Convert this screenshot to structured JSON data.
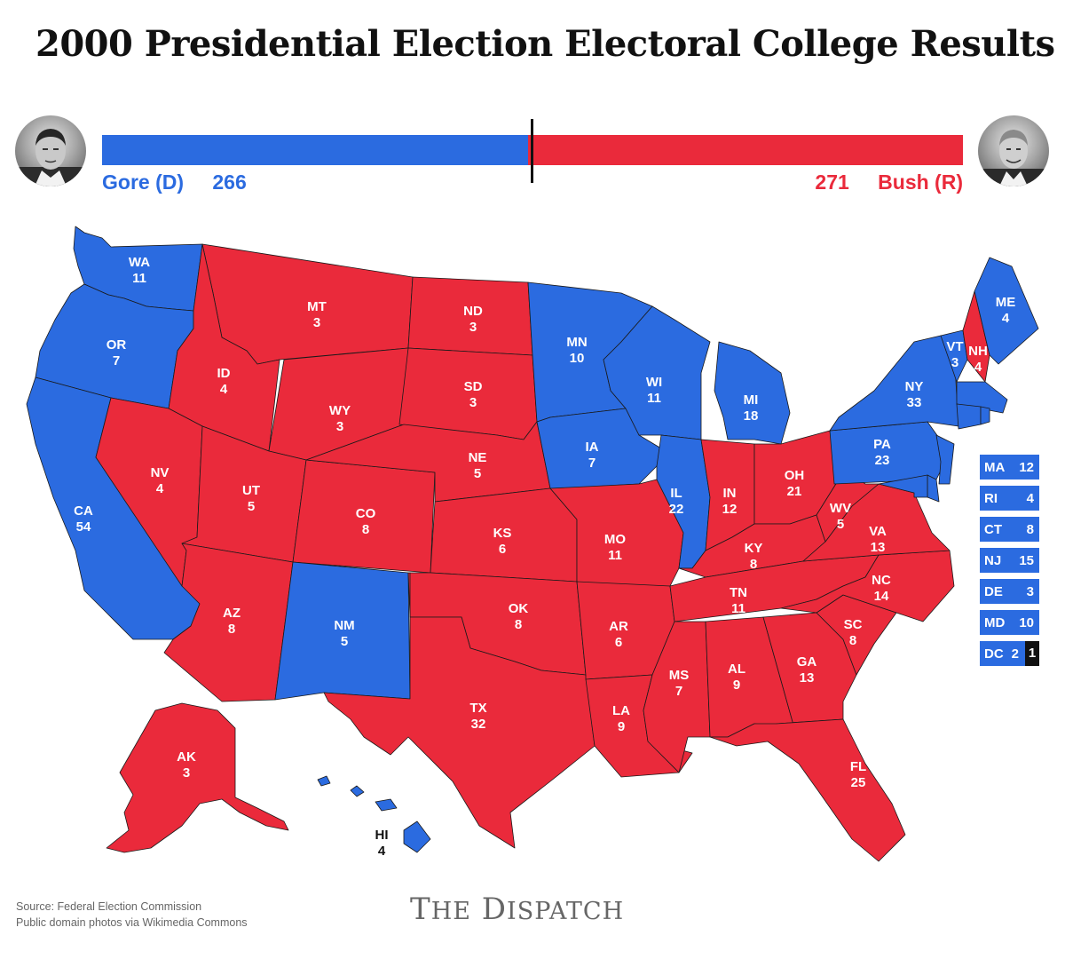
{
  "title": "2000 Presidential Election Electoral College Results",
  "colors": {
    "dem": "#2b6be0",
    "rep": "#ea2a3b",
    "border": "#1a1a1a",
    "brand_gray": "#666666"
  },
  "candidates": {
    "gore": {
      "label": "Gore (D)",
      "votes": 266,
      "photo": "gore-portrait"
    },
    "bush": {
      "label": "Bush (R)",
      "votes": 271,
      "photo": "bush-portrait"
    }
  },
  "states": [
    {
      "abbr": "WA",
      "ev": 11,
      "winner": "D"
    },
    {
      "abbr": "OR",
      "ev": 7,
      "winner": "D"
    },
    {
      "abbr": "CA",
      "ev": 54,
      "winner": "D"
    },
    {
      "abbr": "MT",
      "ev": 3,
      "winner": "R"
    },
    {
      "abbr": "ID",
      "ev": 4,
      "winner": "R"
    },
    {
      "abbr": "NV",
      "ev": 4,
      "winner": "R"
    },
    {
      "abbr": "WY",
      "ev": 3,
      "winner": "R"
    },
    {
      "abbr": "UT",
      "ev": 5,
      "winner": "R"
    },
    {
      "abbr": "AZ",
      "ev": 8,
      "winner": "R"
    },
    {
      "abbr": "CO",
      "ev": 8,
      "winner": "R"
    },
    {
      "abbr": "NM",
      "ev": 5,
      "winner": "D"
    },
    {
      "abbr": "ND",
      "ev": 3,
      "winner": "R"
    },
    {
      "abbr": "SD",
      "ev": 3,
      "winner": "R"
    },
    {
      "abbr": "NE",
      "ev": 5,
      "winner": "R"
    },
    {
      "abbr": "KS",
      "ev": 6,
      "winner": "R"
    },
    {
      "abbr": "OK",
      "ev": 8,
      "winner": "R"
    },
    {
      "abbr": "TX",
      "ev": 32,
      "winner": "R"
    },
    {
      "abbr": "MN",
      "ev": 10,
      "winner": "D"
    },
    {
      "abbr": "IA",
      "ev": 7,
      "winner": "D"
    },
    {
      "abbr": "MO",
      "ev": 11,
      "winner": "R"
    },
    {
      "abbr": "AR",
      "ev": 6,
      "winner": "R"
    },
    {
      "abbr": "LA",
      "ev": 9,
      "winner": "R"
    },
    {
      "abbr": "WI",
      "ev": 11,
      "winner": "D"
    },
    {
      "abbr": "IL",
      "ev": 22,
      "winner": "D"
    },
    {
      "abbr": "MI",
      "ev": 18,
      "winner": "D"
    },
    {
      "abbr": "IN",
      "ev": 12,
      "winner": "R"
    },
    {
      "abbr": "OH",
      "ev": 21,
      "winner": "R"
    },
    {
      "abbr": "KY",
      "ev": 8,
      "winner": "R"
    },
    {
      "abbr": "TN",
      "ev": 11,
      "winner": "R"
    },
    {
      "abbr": "MS",
      "ev": 7,
      "winner": "R"
    },
    {
      "abbr": "AL",
      "ev": 9,
      "winner": "R"
    },
    {
      "abbr": "GA",
      "ev": 13,
      "winner": "R"
    },
    {
      "abbr": "FL",
      "ev": 25,
      "winner": "R"
    },
    {
      "abbr": "SC",
      "ev": 8,
      "winner": "R"
    },
    {
      "abbr": "NC",
      "ev": 14,
      "winner": "R"
    },
    {
      "abbr": "VA",
      "ev": 13,
      "winner": "R"
    },
    {
      "abbr": "WV",
      "ev": 5,
      "winner": "R"
    },
    {
      "abbr": "PA",
      "ev": 23,
      "winner": "D"
    },
    {
      "abbr": "NY",
      "ev": 33,
      "winner": "D"
    },
    {
      "abbr": "VT",
      "ev": 3,
      "winner": "D"
    },
    {
      "abbr": "NH",
      "ev": 4,
      "winner": "R"
    },
    {
      "abbr": "ME",
      "ev": 4,
      "winner": "D"
    },
    {
      "abbr": "AK",
      "ev": 3,
      "winner": "R"
    },
    {
      "abbr": "HI",
      "ev": 4,
      "winner": "D"
    }
  ],
  "small_states": [
    {
      "abbr": "MA",
      "ev": "12"
    },
    {
      "abbr": "RI",
      "ev": "4"
    },
    {
      "abbr": "CT",
      "ev": "8"
    },
    {
      "abbr": "NJ",
      "ev": "15"
    },
    {
      "abbr": "DE",
      "ev": "3"
    },
    {
      "abbr": "MD",
      "ev": "10"
    },
    {
      "abbr": "DC",
      "ev": "2",
      "rep_ev": "1"
    }
  ],
  "footer": {
    "source": "Source: Federal Election Commission",
    "credits": "Public domain photos via Wikimedia Commons",
    "brand": "THE DISPATCH"
  }
}
